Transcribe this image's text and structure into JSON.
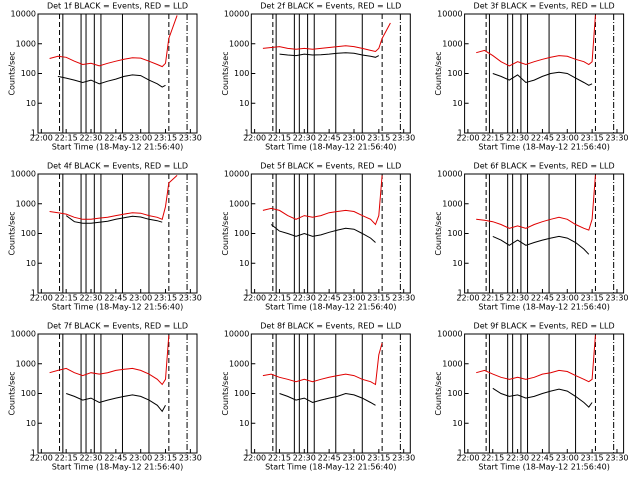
{
  "chart_data": [
    {
      "type": "line",
      "title": "Det 1f BLACK = Events, RED = LLD",
      "x_label": "Start Time (18-May-12 21:56:40)",
      "y_label": "Counts/sec",
      "log_y": true,
      "xlim": [
        "21:58",
        "23:34"
      ],
      "xticks": [
        "22:00",
        "22:15",
        "22:30",
        "22:45",
        "23:00",
        "23:15",
        "23:30"
      ],
      "ylim": [
        1,
        10000
      ],
      "yticks": [
        1,
        10,
        100,
        1000,
        10000
      ],
      "x": [
        "22:05",
        "22:10",
        "22:15",
        "22:20",
        "22:25",
        "22:30",
        "22:35",
        "22:40",
        "22:45",
        "22:50",
        "22:55",
        "23:00",
        "23:05",
        "23:10",
        "23:13",
        "23:15",
        "23:17",
        "23:22"
      ],
      "series": [
        {
          "color": "#000000",
          "values": [
            null,
            80,
            70,
            60,
            50,
            60,
            45,
            55,
            65,
            80,
            90,
            85,
            60,
            45,
            35,
            40,
            null,
            null
          ]
        },
        {
          "color": "#e00000",
          "values": [
            320,
            380,
            350,
            260,
            200,
            220,
            180,
            220,
            260,
            300,
            340,
            330,
            260,
            200,
            170,
            220,
            1500,
            9000
          ]
        }
      ],
      "solid_lines": [
        "22:13",
        "22:24",
        "22:27",
        "22:32",
        "22:36",
        "22:49",
        "23:05"
      ],
      "dashed_lines": [
        "22:11",
        "23:17"
      ],
      "dashdot_lines": [
        "23:28"
      ]
    },
    {
      "type": "line",
      "title": "Det 2f BLACK = Events, RED = LLD",
      "x_label": "Start Time (18-May-12 21:56:40)",
      "y_label": "Counts/sec",
      "log_y": true,
      "xlim": [
        "21:58",
        "23:34"
      ],
      "xticks": [
        "22:00",
        "22:15",
        "22:30",
        "22:45",
        "23:00",
        "23:15",
        "23:30"
      ],
      "ylim": [
        1,
        10000
      ],
      "yticks": [
        1,
        10,
        100,
        1000,
        10000
      ],
      "x": [
        "22:05",
        "22:10",
        "22:15",
        "22:20",
        "22:25",
        "22:30",
        "22:35",
        "22:40",
        "22:45",
        "22:50",
        "22:55",
        "23:00",
        "23:05",
        "23:10",
        "23:13",
        "23:15",
        "23:17",
        "23:22"
      ],
      "series": [
        {
          "color": "#000000",
          "values": [
            null,
            null,
            450,
            420,
            400,
            450,
            420,
            430,
            450,
            480,
            500,
            480,
            420,
            380,
            350,
            400,
            null,
            null
          ]
        },
        {
          "color": "#e00000",
          "values": [
            700,
            750,
            800,
            700,
            650,
            700,
            650,
            700,
            750,
            800,
            850,
            800,
            700,
            600,
            550,
            700,
            1500,
            5000
          ]
        }
      ],
      "solid_lines": [
        "22:13",
        "22:24",
        "22:27",
        "22:32",
        "22:36",
        "22:49",
        "23:05"
      ],
      "dashed_lines": [
        "22:11",
        "23:17"
      ],
      "dashdot_lines": [
        "23:28"
      ]
    },
    {
      "type": "line",
      "title": "Det 3f BLACK = Events, RED = LLD",
      "x_label": "Start Time (18-May-12 21:56:40)",
      "y_label": "Counts/sec",
      "log_y": true,
      "xlim": [
        "21:58",
        "23:34"
      ],
      "xticks": [
        "22:00",
        "22:15",
        "22:30",
        "22:45",
        "23:00",
        "23:15",
        "23:30"
      ],
      "ylim": [
        1,
        10000
      ],
      "yticks": [
        1,
        10,
        100,
        1000,
        10000
      ],
      "x": [
        "22:05",
        "22:10",
        "22:15",
        "22:20",
        "22:25",
        "22:30",
        "22:35",
        "22:40",
        "22:45",
        "22:50",
        "22:55",
        "23:00",
        "23:05",
        "23:10",
        "23:13",
        "23:15",
        "23:17",
        "23:22"
      ],
      "series": [
        {
          "color": "#000000",
          "values": [
            null,
            null,
            100,
            80,
            60,
            90,
            50,
            60,
            80,
            100,
            110,
            100,
            70,
            50,
            40,
            45,
            null,
            null
          ]
        },
        {
          "color": "#e00000",
          "values": [
            500,
            600,
            400,
            250,
            180,
            250,
            200,
            250,
            300,
            350,
            400,
            380,
            300,
            250,
            200,
            250,
            9000,
            null
          ]
        }
      ],
      "solid_lines": [
        "22:13",
        "22:24",
        "22:27",
        "22:32",
        "22:36",
        "22:49",
        "23:05"
      ],
      "dashed_lines": [
        "22:11",
        "23:17"
      ],
      "dashdot_lines": [
        "23:28"
      ]
    },
    {
      "type": "line",
      "title": "Det 4f BLACK = Events, RED = LLD",
      "x_label": "Start Time (18-May-12 21:56:40)",
      "y_label": "Counts/sec",
      "log_y": true,
      "xlim": [
        "21:58",
        "23:34"
      ],
      "xticks": [
        "22:00",
        "22:15",
        "22:30",
        "22:45",
        "23:00",
        "23:15",
        "23:30"
      ],
      "ylim": [
        1,
        10000
      ],
      "yticks": [
        1,
        10,
        100,
        1000,
        10000
      ],
      "x": [
        "22:05",
        "22:10",
        "22:15",
        "22:20",
        "22:25",
        "22:30",
        "22:35",
        "22:40",
        "22:45",
        "22:50",
        "22:55",
        "23:00",
        "23:05",
        "23:10",
        "23:13",
        "23:15",
        "23:17",
        "23:22"
      ],
      "series": [
        {
          "color": "#000000",
          "values": [
            null,
            null,
            400,
            250,
            220,
            220,
            240,
            260,
            300,
            340,
            380,
            360,
            300,
            270,
            240,
            null,
            null,
            null
          ]
        },
        {
          "color": "#e00000",
          "values": [
            550,
            500,
            450,
            350,
            300,
            300,
            330,
            350,
            400,
            450,
            500,
            480,
            400,
            350,
            300,
            800,
            5000,
            9000
          ]
        }
      ],
      "solid_lines": [
        "22:13",
        "22:24",
        "22:27",
        "22:32",
        "22:36",
        "22:49",
        "23:05"
      ],
      "dashed_lines": [
        "22:11",
        "23:17"
      ],
      "dashdot_lines": [
        "23:28"
      ]
    },
    {
      "type": "line",
      "title": "Det 5f BLACK = Events, RED = LLD",
      "x_label": "Start Time (18-May-12 21:56:40)",
      "y_label": "Counts/sec",
      "log_y": true,
      "xlim": [
        "21:58",
        "23:34"
      ],
      "xticks": [
        "22:00",
        "22:15",
        "22:30",
        "22:45",
        "23:00",
        "23:15",
        "23:30"
      ],
      "ylim": [
        1,
        10000
      ],
      "yticks": [
        1,
        10,
        100,
        1000,
        10000
      ],
      "x": [
        "22:05",
        "22:10",
        "22:15",
        "22:20",
        "22:25",
        "22:30",
        "22:35",
        "22:40",
        "22:45",
        "22:50",
        "22:55",
        "23:00",
        "23:05",
        "23:10",
        "23:13",
        "23:15",
        "23:17",
        "23:22"
      ],
      "series": [
        {
          "color": "#000000",
          "values": [
            null,
            200,
            120,
            100,
            80,
            100,
            80,
            90,
            110,
            130,
            150,
            140,
            100,
            70,
            50,
            null,
            null,
            null
          ]
        },
        {
          "color": "#e00000",
          "values": [
            600,
            700,
            600,
            400,
            300,
            400,
            350,
            400,
            500,
            550,
            600,
            550,
            400,
            300,
            200,
            400,
            9000,
            null
          ]
        }
      ],
      "solid_lines": [
        "22:13",
        "22:24",
        "22:27",
        "22:32",
        "22:36",
        "22:49",
        "23:05"
      ],
      "dashed_lines": [
        "22:11",
        "23:17"
      ],
      "dashdot_lines": [
        "23:28"
      ]
    },
    {
      "type": "line",
      "title": "Det 6f BLACK = Events, RED = LLD",
      "x_label": "Start Time (18-May-12 21:56:40)",
      "y_label": "Counts/sec",
      "log_y": true,
      "xlim": [
        "21:58",
        "23:34"
      ],
      "xticks": [
        "22:00",
        "22:15",
        "22:30",
        "22:45",
        "23:00",
        "23:15",
        "23:30"
      ],
      "ylim": [
        1,
        10000
      ],
      "yticks": [
        1,
        10,
        100,
        1000,
        10000
      ],
      "x": [
        "22:05",
        "22:10",
        "22:15",
        "22:20",
        "22:25",
        "22:30",
        "22:35",
        "22:40",
        "22:45",
        "22:50",
        "22:55",
        "23:00",
        "23:05",
        "23:10",
        "23:13",
        "23:15",
        "23:17",
        "23:22"
      ],
      "series": [
        {
          "color": "#000000",
          "values": [
            null,
            null,
            80,
            60,
            40,
            60,
            40,
            50,
            60,
            70,
            80,
            70,
            50,
            30,
            20,
            null,
            null,
            null
          ]
        },
        {
          "color": "#e00000",
          "values": [
            300,
            280,
            250,
            200,
            150,
            180,
            150,
            200,
            250,
            300,
            350,
            300,
            200,
            150,
            130,
            300,
            9000,
            null
          ]
        }
      ],
      "solid_lines": [
        "22:13",
        "22:24",
        "22:27",
        "22:32",
        "22:36",
        "22:49",
        "23:05"
      ],
      "dashed_lines": [
        "22:11",
        "23:17"
      ],
      "dashdot_lines": [
        "23:28"
      ]
    },
    {
      "type": "line",
      "title": "Det 7f BLACK = Events, RED = LLD",
      "x_label": "Start Time (18-May-12 21:56:40)",
      "y_label": "Counts/sec",
      "log_y": true,
      "xlim": [
        "21:58",
        "23:34"
      ],
      "xticks": [
        "22:00",
        "22:15",
        "22:30",
        "22:45",
        "23:00",
        "23:15",
        "23:30"
      ],
      "ylim": [
        1,
        10000
      ],
      "yticks": [
        1,
        10,
        100,
        1000,
        10000
      ],
      "x": [
        "22:05",
        "22:10",
        "22:15",
        "22:20",
        "22:25",
        "22:30",
        "22:35",
        "22:40",
        "22:45",
        "22:50",
        "22:55",
        "23:00",
        "23:05",
        "23:10",
        "23:13",
        "23:15",
        "23:17",
        "23:22"
      ],
      "series": [
        {
          "color": "#000000",
          "values": [
            null,
            null,
            100,
            80,
            60,
            70,
            50,
            60,
            70,
            80,
            90,
            80,
            60,
            40,
            25,
            40,
            null,
            null
          ]
        },
        {
          "color": "#e00000",
          "values": [
            500,
            600,
            700,
            500,
            400,
            500,
            450,
            500,
            600,
            650,
            700,
            600,
            450,
            300,
            200,
            300,
            9000,
            null
          ]
        }
      ],
      "solid_lines": [
        "22:13",
        "22:24",
        "22:27",
        "22:32",
        "22:36",
        "22:49",
        "23:05"
      ],
      "dashed_lines": [
        "22:11",
        "23:17"
      ],
      "dashdot_lines": [
        "23:28"
      ]
    },
    {
      "type": "line",
      "title": "Det 8f BLACK = Events, RED = LLD",
      "x_label": "Start Time (18-May-12 21:56:40)",
      "y_label": "Counts/sec",
      "log_y": true,
      "xlim": [
        "21:58",
        "23:34"
      ],
      "xticks": [
        "22:00",
        "22:15",
        "22:30",
        "22:45",
        "23:00",
        "23:15",
        "23:30"
      ],
      "ylim": [
        1,
        10000
      ],
      "yticks": [
        1,
        10,
        100,
        1000,
        10000
      ],
      "x": [
        "22:05",
        "22:10",
        "22:15",
        "22:20",
        "22:25",
        "22:30",
        "22:35",
        "22:40",
        "22:45",
        "22:50",
        "22:55",
        "23:00",
        "23:05",
        "23:10",
        "23:13",
        "23:15",
        "23:17",
        "23:22"
      ],
      "series": [
        {
          "color": "#000000",
          "values": [
            null,
            null,
            100,
            80,
            60,
            70,
            50,
            60,
            70,
            80,
            100,
            90,
            70,
            50,
            40,
            null,
            null,
            null
          ]
        },
        {
          "color": "#e00000",
          "values": [
            400,
            450,
            350,
            300,
            250,
            300,
            250,
            300,
            350,
            400,
            450,
            400,
            300,
            250,
            200,
            2000,
            5000,
            null
          ]
        }
      ],
      "solid_lines": [
        "22:13",
        "22:24",
        "22:27",
        "22:32",
        "22:36",
        "22:49",
        "23:05"
      ],
      "dashed_lines": [
        "22:11",
        "23:17"
      ],
      "dashdot_lines": [
        "23:28"
      ]
    },
    {
      "type": "line",
      "title": "Det 9f BLACK = Events, RED = LLD",
      "x_label": "Start Time (18-May-12 21:56:40)",
      "y_label": "Counts/sec",
      "log_y": true,
      "xlim": [
        "21:58",
        "23:34"
      ],
      "xticks": [
        "22:00",
        "22:15",
        "22:30",
        "22:45",
        "23:00",
        "23:15",
        "23:30"
      ],
      "ylim": [
        1,
        10000
      ],
      "yticks": [
        1,
        10,
        100,
        1000,
        10000
      ],
      "x": [
        "22:05",
        "22:10",
        "22:15",
        "22:20",
        "22:25",
        "22:30",
        "22:35",
        "22:40",
        "22:45",
        "22:50",
        "22:55",
        "23:00",
        "23:05",
        "23:10",
        "23:13",
        "23:15",
        "23:17",
        "23:22"
      ],
      "series": [
        {
          "color": "#000000",
          "values": [
            null,
            null,
            150,
            100,
            80,
            90,
            70,
            80,
            100,
            120,
            140,
            120,
            80,
            50,
            35,
            50,
            null,
            null
          ]
        },
        {
          "color": "#e00000",
          "values": [
            500,
            600,
            450,
            350,
            300,
            350,
            300,
            350,
            450,
            500,
            600,
            550,
            400,
            300,
            250,
            300,
            9000,
            null
          ]
        }
      ],
      "solid_lines": [
        "22:13",
        "22:24",
        "22:27",
        "22:32",
        "22:36",
        "22:49",
        "23:05"
      ],
      "dashed_lines": [
        "22:11",
        "23:17"
      ],
      "dashdot_lines": [
        "23:28"
      ]
    }
  ]
}
